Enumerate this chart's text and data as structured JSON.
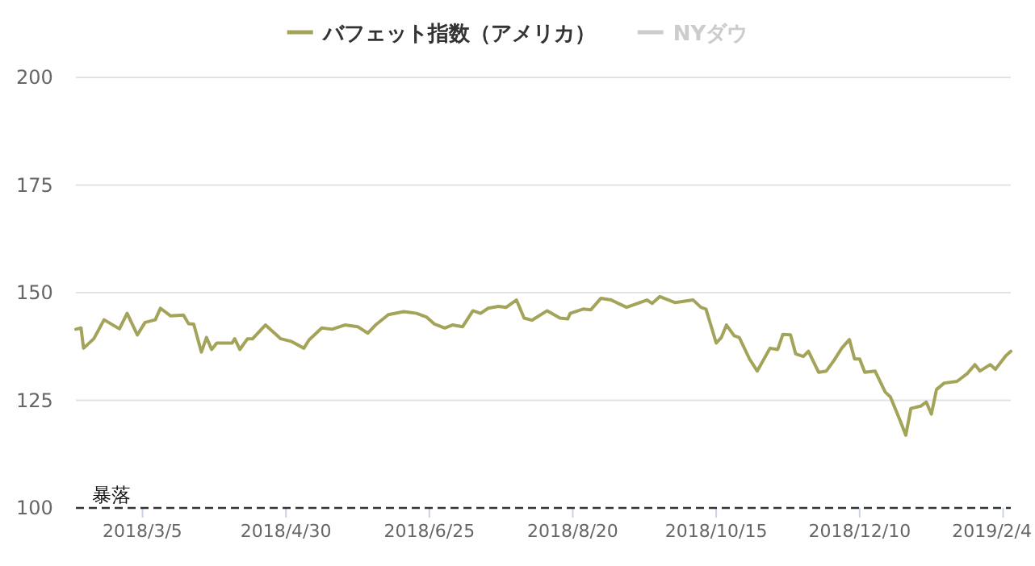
{
  "chart_data": {
    "type": "line",
    "legend": "top",
    "grid": "y",
    "marker": "none",
    "line_style": "solid",
    "xlim": [
      "2018-02-07",
      "2019-02-07"
    ],
    "xticks": [
      {
        "value": "2018-03-05",
        "label": "2018/3/5"
      },
      {
        "value": "2018-04-30",
        "label": "2018/4/30"
      },
      {
        "value": "2018-06-25",
        "label": "2018/6/25"
      },
      {
        "value": "2018-08-20",
        "label": "2018/8/20"
      },
      {
        "value": "2018-10-15",
        "label": "2018/10/15"
      },
      {
        "value": "2018-12-10",
        "label": "2018/12/10"
      },
      {
        "value": "2019-02-04",
        "label": "2019/2/4"
      }
    ],
    "ylim": [
      100,
      200
    ],
    "yticks": [
      100,
      125,
      150,
      175,
      200
    ],
    "ref_lines": [
      {
        "axis": "y",
        "value": 100,
        "label": "暴落",
        "color": "#333333",
        "line_style": "dashed"
      }
    ],
    "x": [
      "2018-02-07",
      "2018-02-09",
      "2018-02-10",
      "2018-02-14",
      "2018-02-18",
      "2018-02-24",
      "2018-02-27",
      "2018-03-03",
      "2018-03-06",
      "2018-03-10",
      "2018-03-12",
      "2018-03-16",
      "2018-03-21",
      "2018-03-23",
      "2018-03-25",
      "2018-03-28",
      "2018-03-30",
      "2018-04-01",
      "2018-04-03",
      "2018-04-09",
      "2018-04-10",
      "2018-04-12",
      "2018-04-15",
      "2018-04-17",
      "2018-04-22",
      "2018-04-28",
      "2018-05-02",
      "2018-05-07",
      "2018-05-09",
      "2018-05-14",
      "2018-05-18",
      "2018-05-23",
      "2018-05-28",
      "2018-06-01",
      "2018-06-04",
      "2018-06-09",
      "2018-06-15",
      "2018-06-20",
      "2018-06-24",
      "2018-06-27",
      "2018-07-01",
      "2018-07-04",
      "2018-07-08",
      "2018-07-12",
      "2018-07-15",
      "2018-07-18",
      "2018-07-22",
      "2018-07-25",
      "2018-07-29",
      "2018-08-01",
      "2018-08-04",
      "2018-08-10",
      "2018-08-15",
      "2018-08-18",
      "2018-08-19",
      "2018-08-24",
      "2018-08-27",
      "2018-08-31",
      "2018-09-04",
      "2018-09-10",
      "2018-09-18",
      "2018-09-20",
      "2018-09-23",
      "2018-09-29",
      "2018-10-06",
      "2018-10-09",
      "2018-10-11",
      "2018-10-15",
      "2018-10-17",
      "2018-10-19",
      "2018-10-22",
      "2018-10-24",
      "2018-10-28",
      "2018-10-31",
      "2018-11-05",
      "2018-11-08",
      "2018-11-10",
      "2018-11-13",
      "2018-11-15",
      "2018-11-18",
      "2018-11-20",
      "2018-11-24",
      "2018-11-27",
      "2018-11-30",
      "2018-12-03",
      "2018-12-06",
      "2018-12-08",
      "2018-12-10",
      "2018-12-12",
      "2018-12-16",
      "2018-12-20",
      "2018-12-22",
      "2018-12-26",
      "2018-12-28",
      "2018-12-30",
      "2019-01-03",
      "2019-01-05",
      "2019-01-07",
      "2019-01-09",
      "2019-01-12",
      "2019-01-17",
      "2019-01-21",
      "2019-01-24",
      "2019-01-26",
      "2019-01-30",
      "2019-02-01",
      "2019-02-05",
      "2019-02-07"
    ],
    "series": [
      {
        "name": "バフェット指数（アメリカ）",
        "color": "#a3a35a",
        "values": [
          141.5,
          141.8,
          137.1,
          139.3,
          143.7,
          141.6,
          145.2,
          140.2,
          143.1,
          143.7,
          146.4,
          144.6,
          144.8,
          142.8,
          142.7,
          136.2,
          139.6,
          136.8,
          138.3,
          138.3,
          139.3,
          136.8,
          139.3,
          139.3,
          142.5,
          139.3,
          138.7,
          137.1,
          139,
          141.8,
          141.5,
          142.5,
          142.1,
          140.6,
          142.5,
          144.9,
          145.6,
          145.2,
          144.3,
          142.7,
          141.8,
          142.5,
          142.1,
          145.8,
          145.2,
          146.4,
          146.8,
          146.6,
          148.3,
          144.1,
          143.6,
          145.8,
          144.1,
          143.9,
          145.2,
          146.2,
          146,
          148.7,
          148.3,
          146.6,
          148.3,
          147.5,
          149.1,
          147.7,
          148.3,
          146.6,
          146.2,
          138.3,
          139.6,
          142.5,
          140,
          139.6,
          134.6,
          131.8,
          137.1,
          136.8,
          140.3,
          140.2,
          135.8,
          135.2,
          136.4,
          131.5,
          131.8,
          134.3,
          137.1,
          139.1,
          134.6,
          134.6,
          131.5,
          131.8,
          126.9,
          125.8,
          120,
          116.9,
          123.1,
          123.7,
          124.6,
          121.8,
          127.5,
          129,
          129.4,
          131.2,
          133.3,
          131.8,
          133.3,
          132.2,
          135.3,
          136.4
        ]
      },
      {
        "name": "NYダウ",
        "color": "#cccccc",
        "values": [
          null,
          null,
          null,
          null,
          null,
          null,
          null,
          null,
          null,
          null,
          null,
          null,
          null,
          null,
          null,
          null,
          null,
          null,
          null,
          null,
          null,
          null,
          null,
          null,
          null,
          null,
          null,
          null,
          null,
          null,
          null,
          null,
          null,
          null,
          null,
          null,
          null,
          null,
          null,
          null,
          null,
          null,
          null,
          null,
          null,
          null,
          null,
          null,
          null,
          null,
          null,
          null,
          null,
          null,
          null,
          null,
          null,
          null,
          null,
          null,
          null,
          null,
          null,
          null,
          null,
          null,
          null,
          null,
          null,
          null,
          null,
          null,
          null,
          null,
          null,
          null,
          null,
          null,
          null,
          null,
          null,
          null,
          null,
          null,
          null,
          null,
          null,
          null,
          null,
          null,
          null,
          null,
          null,
          null,
          null,
          null,
          null,
          null,
          null,
          null,
          null,
          null,
          null,
          null,
          null,
          null,
          null,
          null
        ]
      }
    ]
  }
}
